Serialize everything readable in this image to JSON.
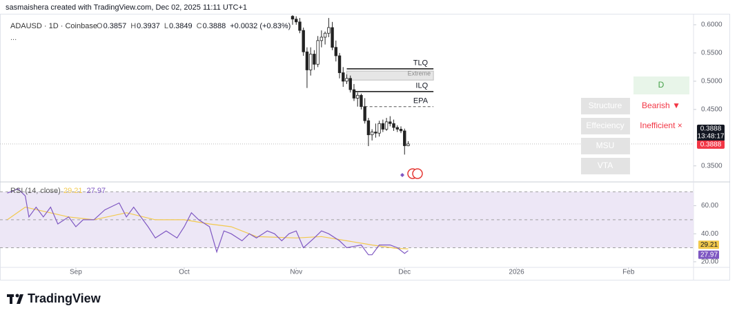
{
  "header": {
    "caption": "sasmaishera created with TradingView.com, Dec 02, 2025 11:11 UTC+1",
    "symbol": "ADAUSD · 1D · Coinbase",
    "ohlc": [
      {
        "label": "O",
        "value": "0.3857"
      },
      {
        "label": "H",
        "value": "0.3937"
      },
      {
        "label": "L",
        "value": "0.3849"
      },
      {
        "label": "C",
        "value": "0.3888"
      }
    ],
    "change": "+0.0032 (+0.83%)",
    "more": "..."
  },
  "footer": {
    "brand": "TradingView"
  },
  "chart_data": [
    {
      "type": "candlestick",
      "xlim": [
        "2025-08-11",
        "2026-02-19"
      ],
      "xticks": [
        {
          "value": "2025-09-01",
          "label": "Sep"
        },
        {
          "value": "2025-10-01",
          "label": "Oct"
        },
        {
          "value": "2025-11-01",
          "label": "Nov"
        },
        {
          "value": "2025-12-01",
          "label": "Dec"
        },
        {
          "value": "2026-01-01",
          "label": "2026"
        },
        {
          "value": "2026-02-01",
          "label": "Feb"
        }
      ],
      "ylim": [
        0.324,
        0.617
      ],
      "yticks": [
        {
          "value": 0.35,
          "label": "0.3500"
        },
        {
          "value": 0.45,
          "label": "0.4500"
        },
        {
          "value": 0.5,
          "label": "0.5000"
        },
        {
          "value": 0.55,
          "label": "0.5500"
        },
        {
          "value": 0.6,
          "label": "0.6000"
        }
      ],
      "up_color": "#ffffff",
      "down_color": "#222222",
      "x": [
        "2025-10-31",
        "2025-11-01",
        "2025-11-02",
        "2025-11-03",
        "2025-11-04",
        "2025-11-05",
        "2025-11-06",
        "2025-11-07",
        "2025-11-08",
        "2025-11-09",
        "2025-11-10",
        "2025-11-11",
        "2025-11-12",
        "2025-11-13",
        "2025-11-14",
        "2025-11-15",
        "2025-11-16",
        "2025-11-17",
        "2025-11-18",
        "2025-11-19",
        "2025-11-20",
        "2025-11-21",
        "2025-11-22",
        "2025-11-23",
        "2025-11-24",
        "2025-11-25",
        "2025-11-26",
        "2025-11-27",
        "2025-11-28",
        "2025-11-29",
        "2025-11-30",
        "2025-12-01",
        "2025-12-02"
      ],
      "open": [
        0.615,
        0.61,
        0.605,
        0.59,
        0.552,
        0.52,
        0.548,
        0.53,
        0.572,
        0.578,
        0.585,
        0.595,
        0.56,
        0.545,
        0.515,
        0.5,
        0.505,
        0.485,
        0.47,
        0.475,
        0.455,
        0.43,
        0.405,
        0.41,
        0.408,
        0.425,
        0.415,
        0.428,
        0.425,
        0.418,
        0.415,
        0.412,
        0.3857
      ],
      "high": [
        0.628,
        0.615,
        0.612,
        0.595,
        0.56,
        0.56,
        0.555,
        0.58,
        0.59,
        0.588,
        0.612,
        0.605,
        0.572,
        0.55,
        0.525,
        0.512,
        0.51,
        0.495,
        0.48,
        0.478,
        0.47,
        0.435,
        0.415,
        0.425,
        0.43,
        0.432,
        0.435,
        0.438,
        0.432,
        0.422,
        0.42,
        0.416,
        0.3937
      ],
      "low": [
        0.6,
        0.6,
        0.585,
        0.545,
        0.488,
        0.51,
        0.52,
        0.525,
        0.56,
        0.565,
        0.578,
        0.555,
        0.535,
        0.505,
        0.49,
        0.495,
        0.48,
        0.465,
        0.455,
        0.45,
        0.425,
        0.385,
        0.395,
        0.4,
        0.402,
        0.41,
        0.412,
        0.42,
        0.412,
        0.41,
        0.408,
        0.37,
        0.3849
      ],
      "close": [
        0.61,
        0.605,
        0.59,
        0.552,
        0.52,
        0.548,
        0.53,
        0.572,
        0.578,
        0.585,
        0.595,
        0.56,
        0.545,
        0.515,
        0.5,
        0.505,
        0.485,
        0.47,
        0.475,
        0.455,
        0.43,
        0.405,
        0.41,
        0.408,
        0.425,
        0.415,
        0.428,
        0.425,
        0.418,
        0.415,
        0.412,
        0.3857,
        0.3888
      ],
      "last_price": {
        "value": 0.3888,
        "label": "0.3888",
        "countdown": "13:48:17"
      },
      "zone": {
        "label": "Extreme",
        "from": "2025-11-15",
        "to": "2025-12-09",
        "top": 0.518,
        "bottom": 0.502
      },
      "levels": [
        {
          "label": "TLQ",
          "value": 0.522,
          "from": "2025-11-15",
          "to": "2025-12-09",
          "dashed": false
        },
        {
          "label": "ILQ",
          "value": 0.4817,
          "from": "2025-11-17",
          "to": "2025-12-09",
          "dashed": false
        },
        {
          "label": "EPA",
          "value": 0.455,
          "from": "2025-11-20",
          "to": "2025-12-09",
          "dashed": true
        }
      ],
      "table": {
        "header": "D",
        "rows": [
          {
            "label": "Structure",
            "value": "Bearish ▼"
          },
          {
            "label": "Effeciency",
            "value": "Inefficient ×"
          },
          {
            "label": "MSU",
            "value": ""
          },
          {
            "label": "VTA",
            "value": ""
          }
        ]
      }
    },
    {
      "type": "line",
      "title": "RSI (14, close)",
      "ylim": [
        16,
        76
      ],
      "yticks": [
        {
          "value": 20,
          "label": "20.00"
        },
        {
          "value": 40,
          "label": "40.00"
        },
        {
          "value": 60,
          "label": "60.00"
        }
      ],
      "levels": [
        70,
        50,
        30
      ],
      "band_color": "#ede7f6",
      "series": [
        {
          "color": "#7e57c2",
          "value_label": "27.97",
          "x": [
            "2025-08-13",
            "2025-08-16",
            "2025-08-18",
            "2025-08-19",
            "2025-08-21",
            "2025-08-23",
            "2025-08-25",
            "2025-08-27",
            "2025-08-30",
            "2025-09-01",
            "2025-09-03",
            "2025-09-06",
            "2025-09-09",
            "2025-09-13",
            "2025-09-15",
            "2025-09-17",
            "2025-09-19",
            "2025-09-21",
            "2025-09-23",
            "2025-09-26",
            "2025-09-29",
            "2025-10-01",
            "2025-10-03",
            "2025-10-05",
            "2025-10-08",
            "2025-10-10",
            "2025-10-12",
            "2025-10-14",
            "2025-10-17",
            "2025-10-19",
            "2025-10-21",
            "2025-10-24",
            "2025-10-26",
            "2025-10-28",
            "2025-10-30",
            "2025-11-01",
            "2025-11-03",
            "2025-11-06",
            "2025-11-08",
            "2025-11-10",
            "2025-11-13",
            "2025-11-15",
            "2025-11-19",
            "2025-11-21",
            "2025-11-22",
            "2025-11-24",
            "2025-11-27",
            "2025-11-29",
            "2025-12-01",
            "2025-12-02"
          ],
          "values": [
            69,
            72,
            67,
            52,
            59,
            52,
            59,
            47,
            52,
            45,
            50,
            50,
            57,
            62,
            52,
            59,
            52,
            45,
            37,
            42,
            37,
            45,
            55,
            50,
            45,
            27,
            42,
            40,
            35,
            40,
            37,
            42,
            40,
            35,
            40,
            42,
            30,
            37,
            42,
            40,
            35,
            30,
            32,
            25,
            25,
            32,
            32,
            30,
            26,
            27.97
          ]
        },
        {
          "color": "#f2c94c",
          "value_label": "29.21",
          "x": [
            "2025-08-13",
            "2025-08-18",
            "2025-08-30",
            "2025-09-06",
            "2025-09-15",
            "2025-09-23",
            "2025-10-01",
            "2025-10-08",
            "2025-10-14",
            "2025-10-21",
            "2025-11-01",
            "2025-11-08",
            "2025-11-15",
            "2025-11-22",
            "2025-11-29",
            "2025-12-02"
          ],
          "values": [
            50,
            59,
            52,
            50,
            55,
            50,
            50,
            47,
            45,
            38,
            37,
            38,
            35,
            32,
            29.5,
            29.21
          ]
        }
      ]
    }
  ]
}
